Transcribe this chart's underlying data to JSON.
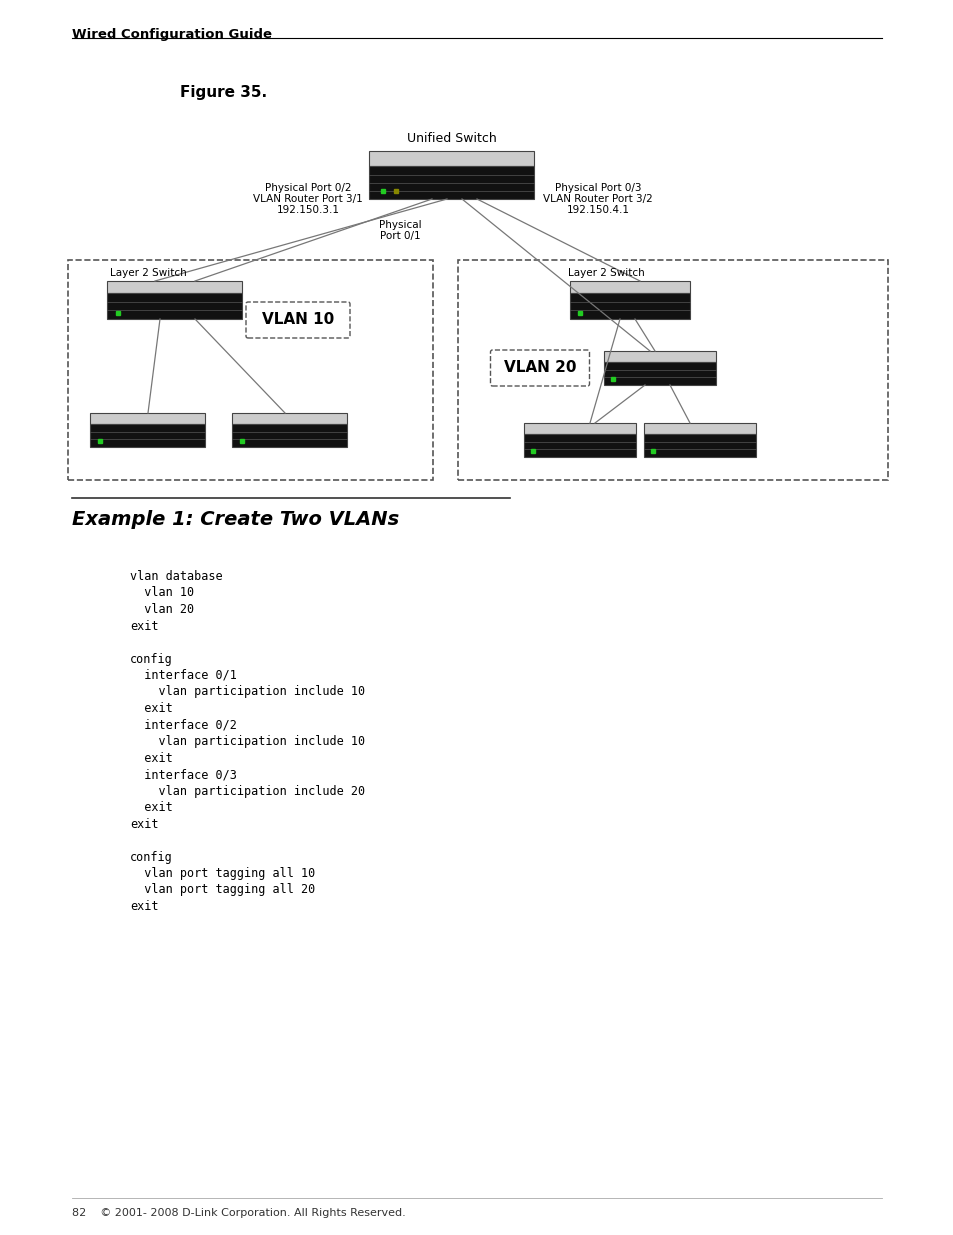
{
  "page_title": "Wired Configuration Guide",
  "figure_label": "Figure 35.",
  "bg_color": "#ffffff",
  "unified_switch_label": "Unified Switch",
  "left_label1": "Physical Port 0/2",
  "left_label2": "VLAN Router Port 3/1",
  "left_label3": "192.150.3.1",
  "right_label1": "Physical Port 0/3",
  "right_label2": "VLAN Router Port 3/2",
  "right_label3": "192.150.4.1",
  "center_label1": "Physical",
  "center_label2": "Port 0/1",
  "vlan10_label": "VLAN 10",
  "vlan20_label": "VLAN 20",
  "layer2_switch_left": "Layer 2 Switch",
  "layer2_switch_right": "Layer 2 Switch",
  "example_title": "Example 1: Create Two VLANs",
  "code_lines": [
    "vlan database",
    "  vlan 10",
    "  vlan 20",
    "exit",
    "",
    "config",
    "  interface 0/1",
    "    vlan participation include 10",
    "  exit",
    "  interface 0/2",
    "    vlan participation include 10",
    "  exit",
    "  interface 0/3",
    "    vlan participation include 20",
    "  exit",
    "exit",
    "",
    "config",
    "  vlan port tagging all 10",
    "  vlan port tagging all 20",
    "exit"
  ],
  "footer": "82    © 2001- 2008 D-Link Corporation. All Rights Reserved."
}
